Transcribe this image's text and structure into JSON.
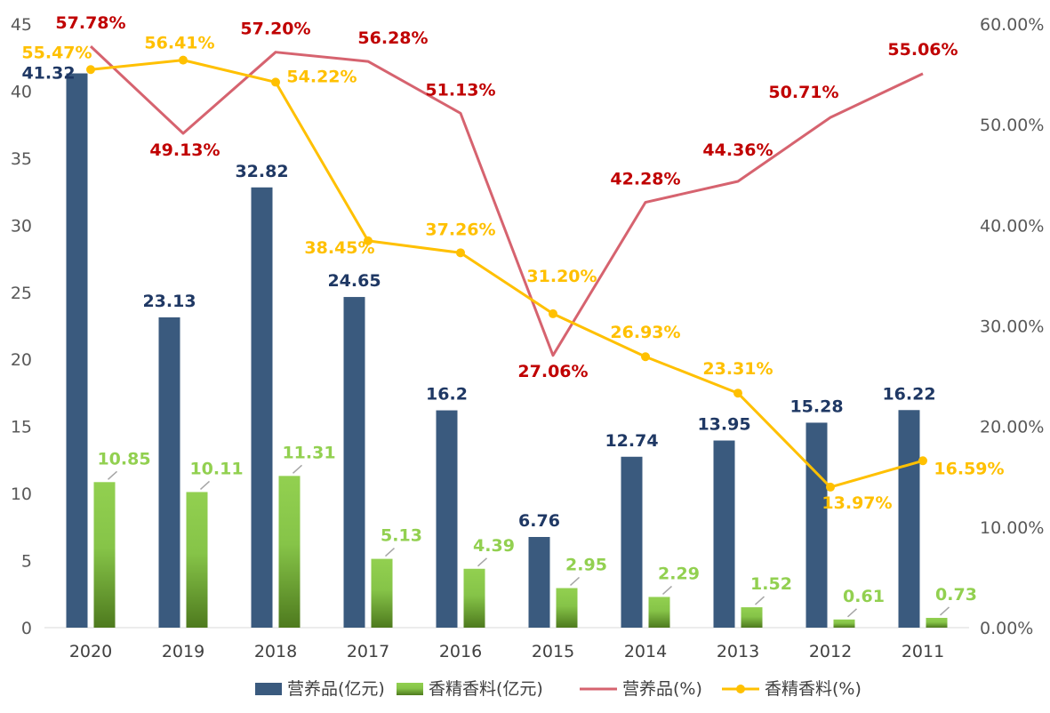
{
  "chart_data": {
    "type": "bar",
    "categories": [
      "2020",
      "2019",
      "2018",
      "2017",
      "2016",
      "2015",
      "2014",
      "2013",
      "2012",
      "2011"
    ],
    "left_axis": {
      "min": 0,
      "max": 45,
      "step": 5,
      "ticks": [
        "0",
        "5",
        "10",
        "15",
        "20",
        "25",
        "30",
        "35",
        "40",
        "45"
      ]
    },
    "right_axis": {
      "min": 0,
      "max": 60,
      "step": 10,
      "ticks": [
        "0.00%",
        "10.00%",
        "20.00%",
        "30.00%",
        "40.00%",
        "50.00%",
        "60.00%"
      ]
    },
    "series": [
      {
        "name": "营养品(亿元)",
        "kind": "bar",
        "axis": "left",
        "color": "#3A5A7E",
        "label_color": "#1F3864",
        "values": [
          41.32,
          23.13,
          32.82,
          24.65,
          16.2,
          6.76,
          12.74,
          13.95,
          15.28,
          16.22
        ],
        "labels": [
          "41.32",
          "23.13",
          "32.82",
          "24.65",
          "16.2",
          "6.76",
          "12.74",
          "13.95",
          "15.28",
          "16.22"
        ]
      },
      {
        "name": "香精香料(亿元)",
        "kind": "bar",
        "axis": "left",
        "color": "#92D050",
        "color_dark": "#4E7A1E",
        "label_color": "#92D050",
        "values": [
          10.85,
          10.11,
          11.31,
          5.13,
          4.39,
          2.95,
          2.29,
          1.52,
          0.61,
          0.73
        ],
        "labels": [
          "10.85",
          "10.11",
          "11.31",
          "5.13",
          "4.39",
          "2.95",
          "2.29",
          "1.52",
          "0.61",
          "0.73"
        ]
      },
      {
        "name": "营养品(%)",
        "kind": "line",
        "axis": "right",
        "color": "#D6636F",
        "label_color": "#C00000",
        "markers": false,
        "values": [
          57.78,
          49.13,
          57.2,
          56.28,
          51.13,
          27.06,
          42.28,
          44.36,
          50.71,
          55.06
        ],
        "labels": [
          "57.78%",
          "49.13%",
          "57.20%",
          "56.28%",
          "51.13%",
          "27.06%",
          "42.28%",
          "44.36%",
          "50.71%",
          "55.06%"
        ]
      },
      {
        "name": "香精香料(%)",
        "kind": "line",
        "axis": "right",
        "color": "#FFC000",
        "label_color": "#FFC000",
        "markers": true,
        "values": [
          55.47,
          56.41,
          54.22,
          38.45,
          37.26,
          31.2,
          26.93,
          23.31,
          13.97,
          16.59
        ],
        "labels": [
          "55.47%",
          "56.41%",
          "54.22%",
          "38.45%",
          "37.26%",
          "31.20%",
          "26.93%",
          "23.31%",
          "13.97%",
          "16.59%"
        ]
      }
    ],
    "legend": {
      "position": "bottom"
    },
    "grid": false
  }
}
